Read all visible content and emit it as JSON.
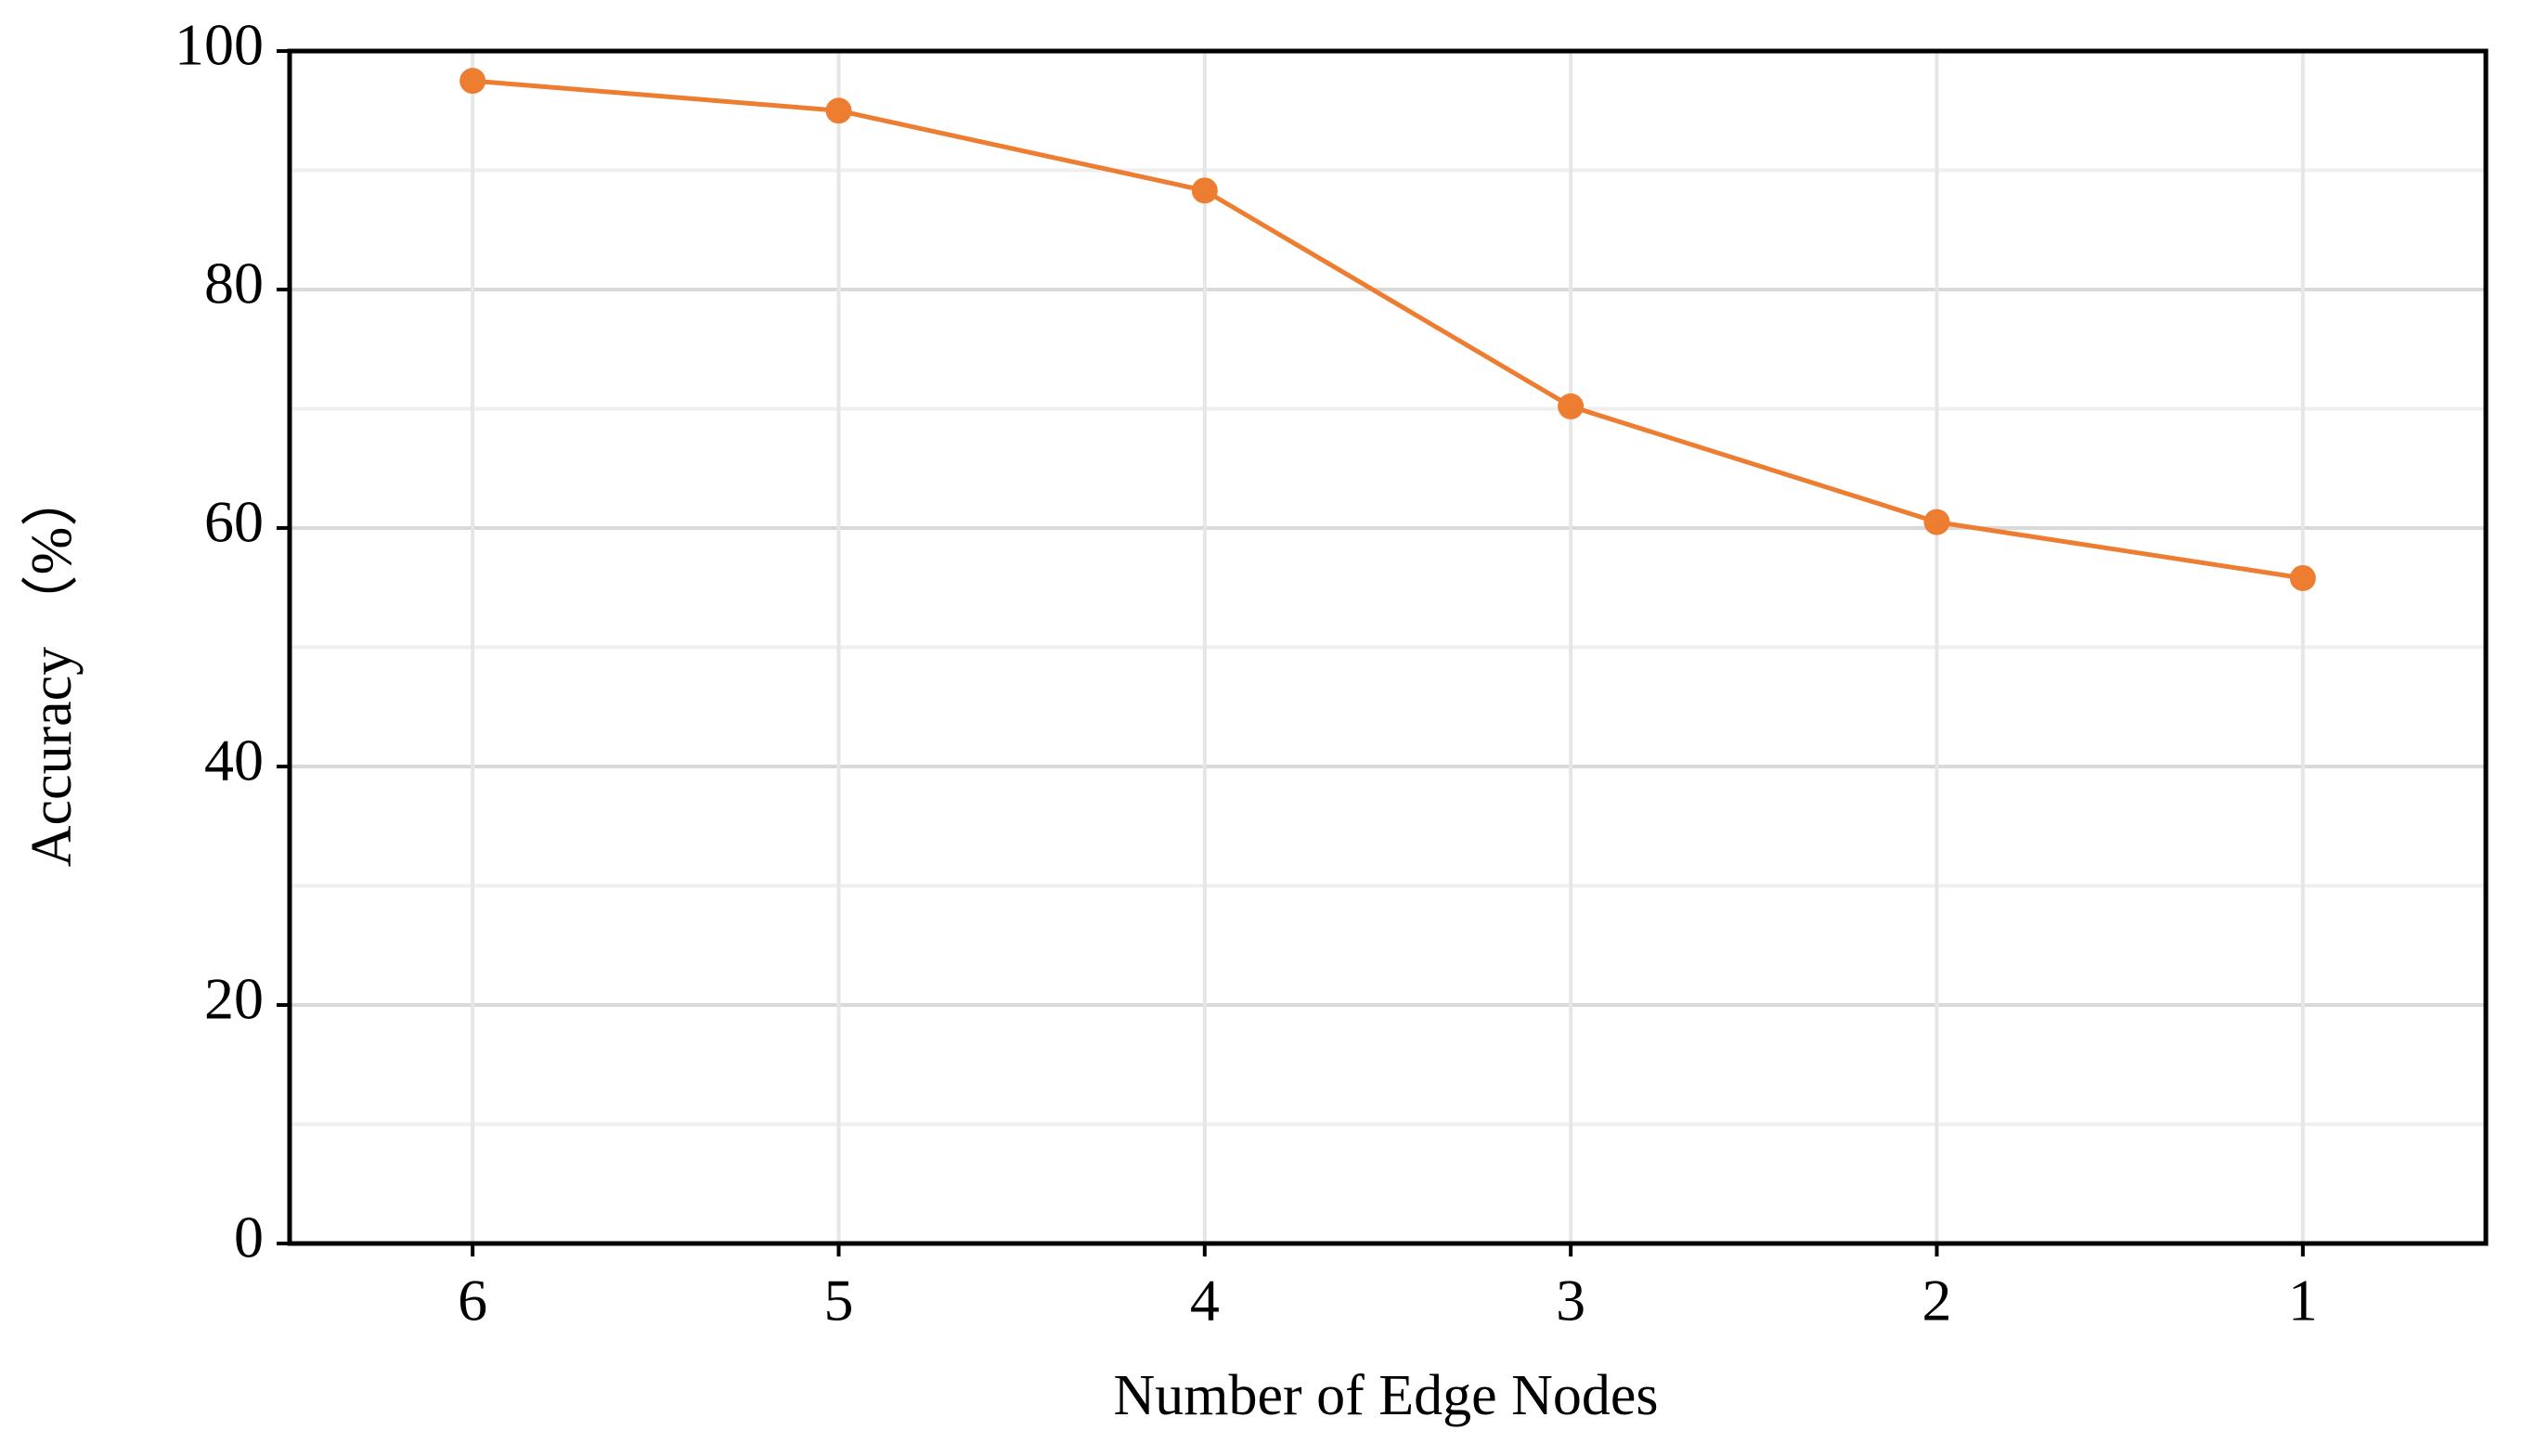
{
  "chart_data": {
    "type": "line",
    "x_label": "Number of Edge Nodes",
    "y_label": "Accuracy （%）",
    "categories": [
      "6",
      "5",
      "4",
      "3",
      "2",
      "1"
    ],
    "series": [
      {
        "name": "Accuracy",
        "color": "#ed7d31",
        "values": [
          97.5,
          95,
          88.3,
          70.2,
          60.5,
          55.8
        ]
      }
    ],
    "ylim": [
      0,
      100
    ],
    "yticks": [
      0,
      20,
      40,
      60,
      80,
      100
    ],
    "minor_yticks": [
      10,
      30,
      50,
      70,
      90
    ],
    "grid": true
  }
}
